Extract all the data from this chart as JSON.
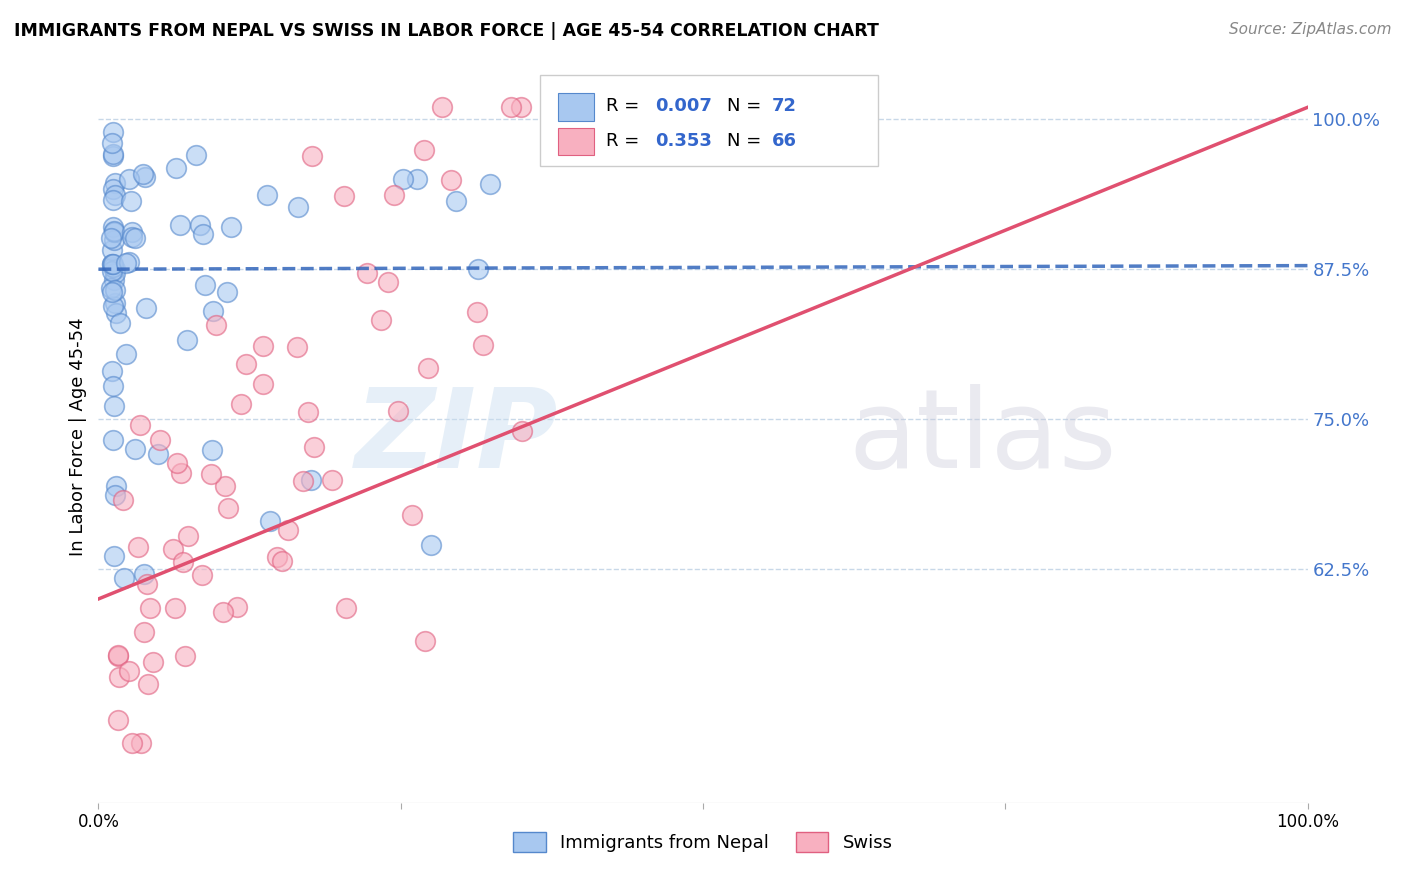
{
  "title": "IMMIGRANTS FROM NEPAL VS SWISS IN LABOR FORCE | AGE 45-54 CORRELATION CHART",
  "source": "Source: ZipAtlas.com",
  "ylabel": "In Labor Force | Age 45-54",
  "xlim": [
    0.0,
    1.0
  ],
  "ylim": [
    0.43,
    1.04
  ],
  "ytick_labels": [
    "62.5%",
    "75.0%",
    "87.5%",
    "100.0%"
  ],
  "ytick_values": [
    0.625,
    0.75,
    0.875,
    1.0
  ],
  "color_nepal": "#a8c8f0",
  "color_nepal_edge": "#5588cc",
  "color_swiss": "#f8b0c0",
  "color_swiss_edge": "#e06080",
  "color_nepal_line": "#3366bb",
  "color_swiss_line": "#e05070",
  "background_color": "#ffffff",
  "grid_color": "#c8d8e8",
  "nepal_seed": 123,
  "swiss_seed": 456
}
